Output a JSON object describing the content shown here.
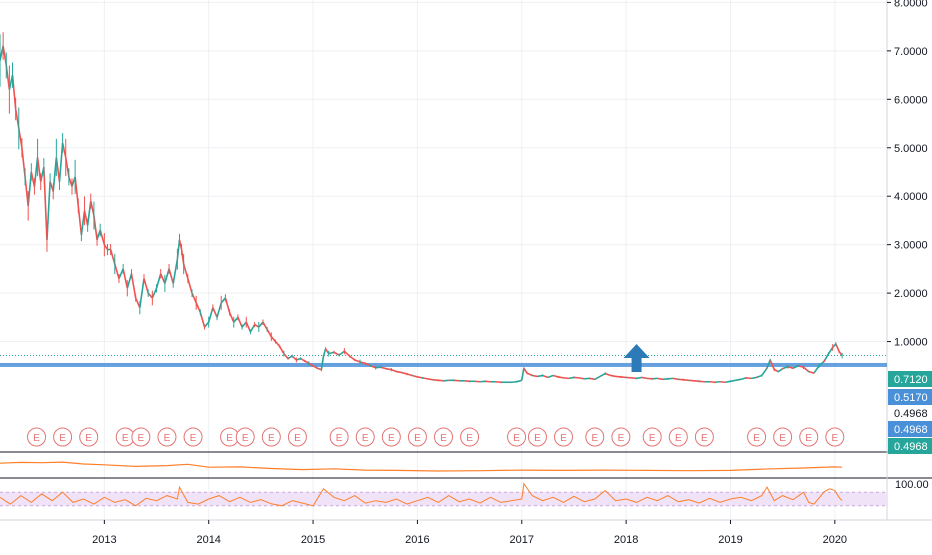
{
  "chart_data": {
    "type": "line",
    "title": "",
    "x_unit": "year",
    "x_range": [
      2012.0,
      2020.5
    ],
    "x_ticks": [
      {
        "value": 2013,
        "label": "2013"
      },
      {
        "value": 2014,
        "label": "2014"
      },
      {
        "value": 2015,
        "label": "2015"
      },
      {
        "value": 2016,
        "label": "2016"
      },
      {
        "value": 2017,
        "label": "2017"
      },
      {
        "value": 2018,
        "label": "2018"
      },
      {
        "value": 2019,
        "label": "2019"
      },
      {
        "value": 2020,
        "label": "2020"
      }
    ],
    "y_ticks": [
      {
        "value": 8,
        "label": "8.0000"
      },
      {
        "value": 7,
        "label": "7.0000"
      },
      {
        "value": 6,
        "label": "6.0000"
      },
      {
        "value": 5,
        "label": "5.0000"
      },
      {
        "value": 4,
        "label": "4.0000"
      },
      {
        "value": 3,
        "label": "3.0000"
      },
      {
        "value": 2,
        "label": "2.0000"
      },
      {
        "value": 1,
        "label": "1.0000"
      }
    ],
    "price_range": [
      0.0,
      8.05
    ],
    "grid": true,
    "colors": {
      "price": "#ef5350",
      "price_alt": "#26a69a",
      "indicator": "#ff7f2a",
      "support": "#4a90d9",
      "tag": "#26a69a",
      "tag2": "#4a90d9",
      "arrow": "#2d7ab8",
      "earnings": "#e57373",
      "rsi_band": "#f1e3f7",
      "grid": "#eef0f3"
    },
    "price_series": {
      "name": "",
      "points": [
        [
          2012.0,
          6.8
        ],
        [
          2012.03,
          7.1
        ],
        [
          2012.06,
          6.7
        ],
        [
          2012.09,
          6.2
        ],
        [
          2012.12,
          6.5
        ],
        [
          2012.15,
          5.8
        ],
        [
          2012.18,
          5.4
        ],
        [
          2012.21,
          5.0
        ],
        [
          2012.24,
          4.4
        ],
        [
          2012.27,
          3.8
        ],
        [
          2012.3,
          4.5
        ],
        [
          2012.33,
          4.2
        ],
        [
          2012.36,
          4.8
        ],
        [
          2012.39,
          4.3
        ],
        [
          2012.42,
          4.6
        ],
        [
          2012.45,
          3.1
        ],
        [
          2012.48,
          4.3
        ],
        [
          2012.51,
          4.1
        ],
        [
          2012.54,
          4.8
        ],
        [
          2012.57,
          4.3
        ],
        [
          2012.6,
          5.1
        ],
        [
          2012.63,
          4.8
        ],
        [
          2012.66,
          4.4
        ],
        [
          2012.69,
          4.2
        ],
        [
          2012.72,
          4.4
        ],
        [
          2012.75,
          3.8
        ],
        [
          2012.78,
          3.2
        ],
        [
          2012.81,
          3.7
        ],
        [
          2012.84,
          3.4
        ],
        [
          2012.87,
          3.9
        ],
        [
          2012.9,
          3.6
        ],
        [
          2012.93,
          3.1
        ],
        [
          2012.96,
          3.3
        ],
        [
          2013.0,
          3.0
        ],
        [
          2013.03,
          2.9
        ],
        [
          2013.06,
          2.9
        ],
        [
          2013.1,
          2.6
        ],
        [
          2013.14,
          2.3
        ],
        [
          2013.18,
          2.5
        ],
        [
          2013.22,
          2.1
        ],
        [
          2013.26,
          2.4
        ],
        [
          2013.3,
          1.9
        ],
        [
          2013.34,
          1.7
        ],
        [
          2013.38,
          2.3
        ],
        [
          2013.42,
          2.0
        ],
        [
          2013.46,
          1.9
        ],
        [
          2013.5,
          2.1
        ],
        [
          2013.54,
          2.4
        ],
        [
          2013.58,
          2.2
        ],
        [
          2013.62,
          2.5
        ],
        [
          2013.66,
          2.2
        ],
        [
          2013.7,
          2.7
        ],
        [
          2013.72,
          3.1
        ],
        [
          2013.74,
          2.9
        ],
        [
          2013.76,
          2.6
        ],
        [
          2013.8,
          2.3
        ],
        [
          2013.84,
          2.0
        ],
        [
          2013.88,
          1.8
        ],
        [
          2013.92,
          1.6
        ],
        [
          2013.96,
          1.3
        ],
        [
          2014.0,
          1.4
        ],
        [
          2014.04,
          1.7
        ],
        [
          2014.08,
          1.5
        ],
        [
          2014.12,
          1.8
        ],
        [
          2014.16,
          1.9
        ],
        [
          2014.2,
          1.6
        ],
        [
          2014.24,
          1.4
        ],
        [
          2014.28,
          1.5
        ],
        [
          2014.32,
          1.3
        ],
        [
          2014.36,
          1.4
        ],
        [
          2014.4,
          1.2
        ],
        [
          2014.44,
          1.35
        ],
        [
          2014.48,
          1.3
        ],
        [
          2014.52,
          1.4
        ],
        [
          2014.56,
          1.25
        ],
        [
          2014.6,
          1.1
        ],
        [
          2014.64,
          1.0
        ],
        [
          2014.68,
          0.9
        ],
        [
          2014.72,
          0.75
        ],
        [
          2014.76,
          0.65
        ],
        [
          2014.8,
          0.7
        ],
        [
          2014.84,
          0.62
        ],
        [
          2014.88,
          0.65
        ],
        [
          2014.92,
          0.6
        ],
        [
          2014.96,
          0.55
        ],
        [
          2015.0,
          0.5
        ],
        [
          2015.04,
          0.45
        ],
        [
          2015.08,
          0.42
        ],
        [
          2015.1,
          0.7
        ],
        [
          2015.12,
          0.85
        ],
        [
          2015.15,
          0.75
        ],
        [
          2015.2,
          0.78
        ],
        [
          2015.25,
          0.72
        ],
        [
          2015.3,
          0.8
        ],
        [
          2015.35,
          0.7
        ],
        [
          2015.4,
          0.62
        ],
        [
          2015.45,
          0.58
        ],
        [
          2015.5,
          0.55
        ],
        [
          2015.55,
          0.5
        ],
        [
          2015.6,
          0.46
        ],
        [
          2015.65,
          0.47
        ],
        [
          2015.7,
          0.44
        ],
        [
          2015.75,
          0.42
        ],
        [
          2015.8,
          0.38
        ],
        [
          2015.85,
          0.36
        ],
        [
          2015.9,
          0.33
        ],
        [
          2015.95,
          0.3
        ],
        [
          2016.0,
          0.27
        ],
        [
          2016.05,
          0.25
        ],
        [
          2016.1,
          0.23
        ],
        [
          2016.15,
          0.21
        ],
        [
          2016.2,
          0.2
        ],
        [
          2016.25,
          0.19
        ],
        [
          2016.3,
          0.2
        ],
        [
          2016.35,
          0.2
        ],
        [
          2016.4,
          0.19
        ],
        [
          2016.45,
          0.19
        ],
        [
          2016.5,
          0.18
        ],
        [
          2016.55,
          0.18
        ],
        [
          2016.6,
          0.17
        ],
        [
          2016.65,
          0.18
        ],
        [
          2016.7,
          0.17
        ],
        [
          2016.75,
          0.17
        ],
        [
          2016.8,
          0.16
        ],
        [
          2016.85,
          0.16
        ],
        [
          2016.9,
          0.16
        ],
        [
          2016.95,
          0.17
        ],
        [
          2017.0,
          0.2
        ],
        [
          2017.02,
          0.45
        ],
        [
          2017.05,
          0.35
        ],
        [
          2017.1,
          0.3
        ],
        [
          2017.15,
          0.28
        ],
        [
          2017.2,
          0.3
        ],
        [
          2017.25,
          0.26
        ],
        [
          2017.3,
          0.3
        ],
        [
          2017.35,
          0.27
        ],
        [
          2017.4,
          0.25
        ],
        [
          2017.45,
          0.24
        ],
        [
          2017.5,
          0.26
        ],
        [
          2017.55,
          0.25
        ],
        [
          2017.6,
          0.23
        ],
        [
          2017.65,
          0.24
        ],
        [
          2017.7,
          0.22
        ],
        [
          2017.75,
          0.28
        ],
        [
          2017.8,
          0.34
        ],
        [
          2017.85,
          0.3
        ],
        [
          2017.9,
          0.28
        ],
        [
          2017.95,
          0.27
        ],
        [
          2018.0,
          0.26
        ],
        [
          2018.05,
          0.25
        ],
        [
          2018.1,
          0.24
        ],
        [
          2018.15,
          0.26
        ],
        [
          2018.2,
          0.24
        ],
        [
          2018.25,
          0.23
        ],
        [
          2018.3,
          0.24
        ],
        [
          2018.35,
          0.22
        ],
        [
          2018.4,
          0.23
        ],
        [
          2018.45,
          0.24
        ],
        [
          2018.5,
          0.22
        ],
        [
          2018.55,
          0.21
        ],
        [
          2018.6,
          0.2
        ],
        [
          2018.65,
          0.19
        ],
        [
          2018.7,
          0.18
        ],
        [
          2018.75,
          0.17
        ],
        [
          2018.8,
          0.17
        ],
        [
          2018.85,
          0.16
        ],
        [
          2018.9,
          0.17
        ],
        [
          2018.95,
          0.16
        ],
        [
          2019.0,
          0.18
        ],
        [
          2019.05,
          0.2
        ],
        [
          2019.1,
          0.22
        ],
        [
          2019.15,
          0.25
        ],
        [
          2019.2,
          0.24
        ],
        [
          2019.25,
          0.26
        ],
        [
          2019.3,
          0.3
        ],
        [
          2019.35,
          0.45
        ],
        [
          2019.38,
          0.62
        ],
        [
          2019.42,
          0.42
        ],
        [
          2019.46,
          0.38
        ],
        [
          2019.5,
          0.44
        ],
        [
          2019.55,
          0.48
        ],
        [
          2019.6,
          0.45
        ],
        [
          2019.65,
          0.5
        ],
        [
          2019.7,
          0.47
        ],
        [
          2019.75,
          0.38
        ],
        [
          2019.8,
          0.35
        ],
        [
          2019.85,
          0.5
        ],
        [
          2019.9,
          0.6
        ],
        [
          2019.94,
          0.75
        ],
        [
          2019.98,
          0.88
        ],
        [
          2020.01,
          0.95
        ],
        [
          2020.04,
          0.8
        ],
        [
          2020.07,
          0.71
        ]
      ]
    },
    "price_labels": [
      {
        "value": 0.712,
        "label": "0.7120",
        "style": "tag"
      },
      {
        "value": 0.517,
        "label": "0.5170",
        "style": "tag2"
      },
      {
        "value": 0.4968,
        "label": "0.4968",
        "style": "plain"
      },
      {
        "value": 0.4968,
        "label": "0.4968",
        "style": "tag2"
      },
      {
        "value": 0.4968,
        "label": "0.4968",
        "style": "tag"
      }
    ],
    "support_level": 0.517,
    "annotation_arrow": {
      "direction": "up",
      "x": 2018.1
    },
    "earnings_marker_label": "E",
    "earnings_dates": [
      2012.35,
      2012.6,
      2012.85,
      2013.2,
      2013.35,
      2013.6,
      2013.85,
      2014.2,
      2014.35,
      2014.6,
      2014.85,
      2015.25,
      2015.5,
      2015.75,
      2016.0,
      2016.25,
      2016.5,
      2016.95,
      2017.15,
      2017.4,
      2017.7,
      2017.95,
      2018.25,
      2018.5,
      2018.75,
      2019.25,
      2019.5,
      2019.75,
      2020.0
    ],
    "indicator1": {
      "name": "",
      "points": [
        [
          2012.0,
          0.55
        ],
        [
          2012.2,
          0.6
        ],
        [
          2012.4,
          0.58
        ],
        [
          2012.6,
          0.62
        ],
        [
          2012.8,
          0.5
        ],
        [
          2013.0,
          0.45
        ],
        [
          2013.3,
          0.35
        ],
        [
          2013.6,
          0.4
        ],
        [
          2013.8,
          0.48
        ],
        [
          2014.0,
          0.3
        ],
        [
          2014.3,
          0.32
        ],
        [
          2014.6,
          0.22
        ],
        [
          2014.9,
          0.15
        ],
        [
          2015.2,
          0.2
        ],
        [
          2015.5,
          0.12
        ],
        [
          2015.8,
          0.1
        ],
        [
          2016.2,
          0.06
        ],
        [
          2016.6,
          0.08
        ],
        [
          2017.0,
          0.12
        ],
        [
          2017.4,
          0.1
        ],
        [
          2017.8,
          0.12
        ],
        [
          2018.2,
          0.1
        ],
        [
          2018.6,
          0.08
        ],
        [
          2019.0,
          0.1
        ],
        [
          2019.4,
          0.2
        ],
        [
          2019.7,
          0.25
        ],
        [
          2020.0,
          0.32
        ],
        [
          2020.07,
          0.3
        ]
      ]
    },
    "indicator2": {
      "name": "",
      "label": "100.00",
      "range": [
        0,
        100
      ],
      "band": [
        30,
        70
      ],
      "points": [
        [
          2012.0,
          55
        ],
        [
          2012.1,
          35
        ],
        [
          2012.2,
          60
        ],
        [
          2012.3,
          40
        ],
        [
          2012.4,
          65
        ],
        [
          2012.5,
          45
        ],
        [
          2012.6,
          70
        ],
        [
          2012.7,
          40
        ],
        [
          2012.8,
          50
        ],
        [
          2012.9,
          35
        ],
        [
          2013.0,
          55
        ],
        [
          2013.1,
          40
        ],
        [
          2013.2,
          48
        ],
        [
          2013.3,
          30
        ],
        [
          2013.4,
          52
        ],
        [
          2013.5,
          45
        ],
        [
          2013.6,
          60
        ],
        [
          2013.7,
          50
        ],
        [
          2013.72,
          85
        ],
        [
          2013.8,
          40
        ],
        [
          2013.9,
          35
        ],
        [
          2014.0,
          50
        ],
        [
          2014.1,
          60
        ],
        [
          2014.2,
          42
        ],
        [
          2014.3,
          55
        ],
        [
          2014.4,
          40
        ],
        [
          2014.5,
          48
        ],
        [
          2014.6,
          36
        ],
        [
          2014.7,
          30
        ],
        [
          2014.8,
          45
        ],
        [
          2014.9,
          38
        ],
        [
          2015.0,
          30
        ],
        [
          2015.1,
          80
        ],
        [
          2015.2,
          55
        ],
        [
          2015.3,
          45
        ],
        [
          2015.4,
          60
        ],
        [
          2015.5,
          38
        ],
        [
          2015.6,
          45
        ],
        [
          2015.7,
          40
        ],
        [
          2015.8,
          50
        ],
        [
          2015.9,
          35
        ],
        [
          2016.0,
          45
        ],
        [
          2016.1,
          55
        ],
        [
          2016.2,
          40
        ],
        [
          2016.3,
          60
        ],
        [
          2016.4,
          42
        ],
        [
          2016.5,
          50
        ],
        [
          2016.6,
          38
        ],
        [
          2016.7,
          55
        ],
        [
          2016.8,
          40
        ],
        [
          2016.9,
          45
        ],
        [
          2017.0,
          50
        ],
        [
          2017.02,
          95
        ],
        [
          2017.1,
          60
        ],
        [
          2017.2,
          45
        ],
        [
          2017.3,
          55
        ],
        [
          2017.4,
          40
        ],
        [
          2017.5,
          58
        ],
        [
          2017.6,
          42
        ],
        [
          2017.7,
          50
        ],
        [
          2017.8,
          75
        ],
        [
          2017.9,
          45
        ],
        [
          2018.0,
          50
        ],
        [
          2018.1,
          40
        ],
        [
          2018.2,
          55
        ],
        [
          2018.3,
          45
        ],
        [
          2018.4,
          60
        ],
        [
          2018.5,
          42
        ],
        [
          2018.6,
          48
        ],
        [
          2018.7,
          38
        ],
        [
          2018.8,
          52
        ],
        [
          2018.9,
          40
        ],
        [
          2019.0,
          50
        ],
        [
          2019.1,
          55
        ],
        [
          2019.2,
          45
        ],
        [
          2019.3,
          60
        ],
        [
          2019.35,
          85
        ],
        [
          2019.42,
          45
        ],
        [
          2019.5,
          60
        ],
        [
          2019.6,
          48
        ],
        [
          2019.7,
          70
        ],
        [
          2019.75,
          40
        ],
        [
          2019.8,
          35
        ],
        [
          2019.9,
          72
        ],
        [
          2019.95,
          80
        ],
        [
          2020.0,
          75
        ],
        [
          2020.04,
          55
        ],
        [
          2020.07,
          45
        ]
      ]
    }
  }
}
